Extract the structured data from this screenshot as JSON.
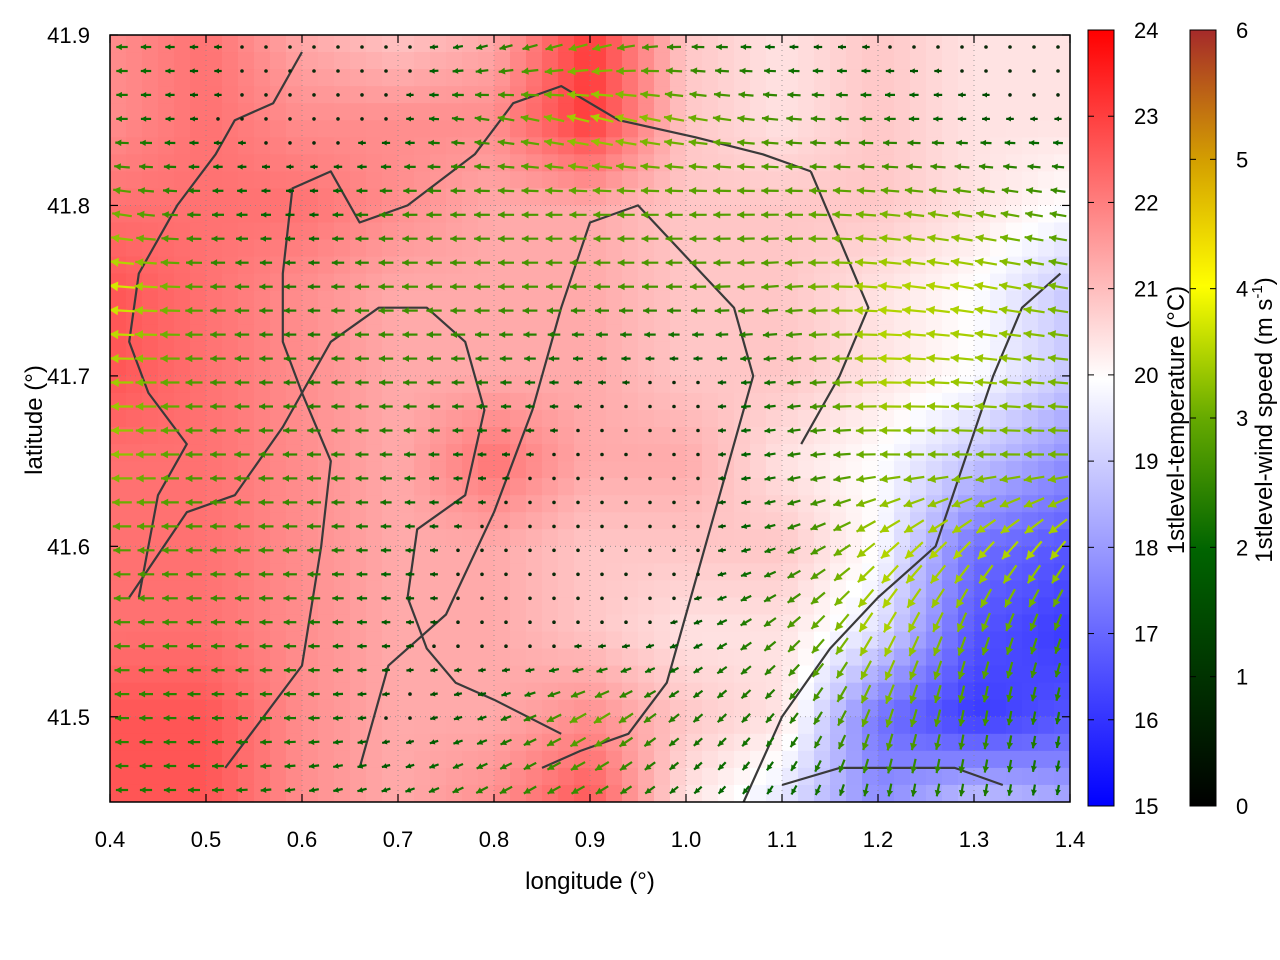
{
  "chart_data": {
    "type": "heatmap",
    "title": "",
    "xlabel": "longitude (°)",
    "ylabel": "latitude (°)",
    "xlim": [
      0.4,
      1.4
    ],
    "ylim": [
      41.45,
      41.9
    ],
    "x_ticks": [
      "0.4",
      "0.5",
      "0.6",
      "0.7",
      "0.8",
      "0.9",
      "1.0",
      "1.1",
      "1.2",
      "1.3",
      "1.4"
    ],
    "y_ticks": [
      "41.5",
      "41.6",
      "41.7",
      "41.8",
      "41.9"
    ],
    "grid": true,
    "temperature": {
      "label": "1stlevel-temperature (°C)",
      "range": [
        15,
        24
      ],
      "ticks": [
        "15",
        "16",
        "17",
        "18",
        "19",
        "20",
        "21",
        "22",
        "23",
        "24"
      ],
      "colormap": [
        "#0000ff",
        "#ffffff",
        "#ff0000"
      ],
      "grid_x": [
        0.4,
        0.5,
        0.6,
        0.7,
        0.8,
        0.9,
        1.0,
        1.1,
        1.2,
        1.3,
        1.4
      ],
      "grid_y": [
        41.9,
        41.85,
        41.8,
        41.75,
        41.7,
        41.65,
        41.6,
        41.55,
        41.5,
        41.45
      ],
      "values": [
        [
          21.5,
          22.0,
          21.0,
          20.5,
          21.0,
          23.0,
          20.5,
          20.0,
          20.5,
          20.0,
          20.0
        ],
        [
          21.5,
          22.0,
          21.5,
          21.5,
          21.5,
          23.0,
          20.5,
          20.0,
          20.5,
          20.0,
          20.0
        ],
        [
          22.0,
          22.0,
          22.0,
          21.5,
          21.0,
          21.0,
          20.5,
          20.5,
          20.5,
          20.0,
          19.5
        ],
        [
          22.5,
          22.0,
          21.5,
          21.0,
          21.0,
          21.0,
          20.5,
          20.5,
          20.0,
          19.5,
          18.5
        ],
        [
          22.5,
          22.0,
          21.5,
          21.0,
          21.0,
          21.0,
          20.5,
          20.5,
          20.0,
          19.5,
          18.5
        ],
        [
          22.0,
          22.0,
          21.5,
          21.0,
          22.0,
          21.0,
          21.0,
          20.0,
          19.5,
          18.5,
          17.5
        ],
        [
          22.0,
          22.0,
          21.5,
          21.0,
          21.0,
          20.5,
          20.5,
          20.5,
          19.5,
          17.0,
          16.5
        ],
        [
          22.0,
          22.0,
          21.5,
          21.0,
          21.0,
          20.5,
          20.0,
          20.0,
          19.0,
          16.5,
          16.0
        ],
        [
          22.5,
          22.5,
          21.5,
          21.0,
          21.0,
          21.5,
          20.5,
          20.0,
          17.0,
          16.0,
          16.5
        ],
        [
          22.5,
          22.5,
          21.5,
          21.0,
          21.5,
          22.5,
          20.0,
          19.0,
          17.5,
          18.5,
          18.0
        ]
      ]
    },
    "wind": {
      "label": "1stlevel-wind speed (m s-1)",
      "range": [
        0,
        6
      ],
      "ticks": [
        "0",
        "1",
        "2",
        "3",
        "4",
        "5",
        "6"
      ],
      "colormap": [
        "#000000",
        "#006400",
        "#66aa00",
        "#ffff00",
        "#d4a000",
        "#a52a2a"
      ],
      "grid_x": [
        0.4,
        0.5,
        0.6,
        0.7,
        0.8,
        0.9,
        1.0,
        1.1,
        1.2,
        1.3,
        1.4
      ],
      "grid_y": [
        41.9,
        41.85,
        41.8,
        41.75,
        41.7,
        41.65,
        41.6,
        41.55,
        41.5,
        41.45
      ],
      "speed": [
        [
          1.5,
          1.0,
          0.7,
          0.7,
          1.5,
          2.5,
          1.5,
          1.0,
          0.8,
          0.7,
          0.7
        ],
        [
          1.5,
          0.9,
          0.7,
          0.8,
          2.0,
          3.0,
          2.5,
          2.0,
          1.5,
          1.0,
          0.9
        ],
        [
          2.5,
          1.5,
          1.0,
          1.8,
          2.0,
          2.2,
          2.2,
          2.2,
          2.5,
          2.5,
          2.0
        ],
        [
          3.5,
          2.0,
          1.5,
          2.0,
          2.0,
          2.0,
          2.0,
          2.2,
          3.0,
          3.0,
          2.5
        ],
        [
          3.0,
          2.0,
          1.5,
          1.8,
          1.5,
          1.0,
          0.8,
          1.5,
          3.0,
          2.8,
          2.5
        ],
        [
          2.8,
          2.0,
          1.8,
          1.5,
          1.0,
          0.7,
          0.6,
          1.5,
          2.5,
          2.5,
          2.5
        ],
        [
          2.2,
          2.0,
          1.8,
          1.2,
          0.7,
          0.6,
          0.6,
          1.5,
          3.0,
          3.0,
          3.0
        ],
        [
          2.0,
          1.8,
          1.5,
          1.0,
          0.7,
          0.6,
          1.0,
          2.0,
          3.0,
          2.5,
          2.0
        ],
        [
          1.8,
          1.5,
          1.5,
          0.8,
          1.2,
          2.5,
          1.5,
          1.5,
          2.5,
          2.0,
          1.5
        ],
        [
          1.5,
          1.5,
          1.2,
          1.2,
          1.8,
          1.8,
          1.2,
          1.2,
          1.5,
          1.5,
          1.2
        ]
      ],
      "direction_deg": [
        [
          180,
          180,
          180,
          180,
          200,
          200,
          180,
          180,
          180,
          180,
          180
        ],
        [
          180,
          180,
          180,
          180,
          170,
          165,
          170,
          175,
          180,
          180,
          180
        ],
        [
          170,
          180,
          180,
          180,
          180,
          180,
          180,
          180,
          175,
          170,
          170
        ],
        [
          175,
          180,
          180,
          180,
          180,
          180,
          180,
          185,
          175,
          170,
          170
        ],
        [
          180,
          180,
          180,
          180,
          180,
          180,
          180,
          185,
          180,
          175,
          175
        ],
        [
          180,
          180,
          180,
          180,
          180,
          180,
          180,
          190,
          180,
          180,
          180
        ],
        [
          180,
          180,
          180,
          180,
          180,
          180,
          180,
          200,
          220,
          225,
          230
        ],
        [
          180,
          180,
          180,
          180,
          180,
          180,
          200,
          220,
          240,
          250,
          250
        ],
        [
          180,
          180,
          180,
          190,
          200,
          210,
          220,
          230,
          250,
          260,
          260
        ],
        [
          180,
          180,
          190,
          200,
          210,
          210,
          220,
          240,
          260,
          260,
          260
        ]
      ]
    },
    "boundaries": [
      [
        [
          0.43,
          41.57
        ],
        [
          0.45,
          41.63
        ],
        [
          0.48,
          41.66
        ],
        [
          0.44,
          41.69
        ],
        [
          0.42,
          41.72
        ],
        [
          0.43,
          41.76
        ],
        [
          0.47,
          41.8
        ],
        [
          0.51,
          41.83
        ],
        [
          0.53,
          41.85
        ],
        [
          0.57,
          41.86
        ],
        [
          0.6,
          41.89
        ]
      ],
      [
        [
          0.52,
          41.47
        ],
        [
          0.56,
          41.5
        ],
        [
          0.6,
          41.53
        ],
        [
          0.62,
          41.6
        ],
        [
          0.63,
          41.65
        ],
        [
          0.6,
          41.69
        ],
        [
          0.58,
          41.72
        ],
        [
          0.58,
          41.76
        ],
        [
          0.59,
          41.81
        ],
        [
          0.63,
          41.82
        ],
        [
          0.66,
          41.79
        ],
        [
          0.71,
          41.8
        ],
        [
          0.78,
          41.83
        ],
        [
          0.82,
          41.86
        ],
        [
          0.87,
          41.87
        ],
        [
          0.93,
          41.85
        ],
        [
          1.01,
          41.84
        ],
        [
          1.08,
          41.83
        ],
        [
          1.13,
          41.82
        ]
      ],
      [
        [
          0.42,
          41.57
        ],
        [
          0.48,
          41.62
        ],
        [
          0.53,
          41.63
        ],
        [
          0.58,
          41.67
        ],
        [
          0.63,
          41.72
        ],
        [
          0.68,
          41.74
        ],
        [
          0.73,
          41.74
        ],
        [
          0.77,
          41.72
        ],
        [
          0.79,
          41.68
        ],
        [
          0.77,
          41.63
        ],
        [
          0.72,
          41.61
        ],
        [
          0.71,
          41.57
        ],
        [
          0.73,
          41.54
        ],
        [
          0.76,
          41.52
        ],
        [
          0.8,
          41.51
        ],
        [
          0.87,
          41.49
        ]
      ],
      [
        [
          0.66,
          41.47
        ],
        [
          0.69,
          41.53
        ],
        [
          0.75,
          41.56
        ],
        [
          0.8,
          41.62
        ],
        [
          0.84,
          41.68
        ],
        [
          0.87,
          41.74
        ],
        [
          0.9,
          41.79
        ],
        [
          0.95,
          41.8
        ],
        [
          1.0,
          41.77
        ],
        [
          1.05,
          41.74
        ],
        [
          1.07,
          41.7
        ],
        [
          1.04,
          41.64
        ],
        [
          1.01,
          41.58
        ],
        [
          0.98,
          41.52
        ],
        [
          0.94,
          41.49
        ],
        [
          0.89,
          41.48
        ],
        [
          0.85,
          41.47
        ]
      ],
      [
        [
          1.06,
          41.45
        ],
        [
          1.1,
          41.5
        ],
        [
          1.15,
          41.54
        ],
        [
          1.2,
          41.57
        ],
        [
          1.26,
          41.6
        ],
        [
          1.29,
          41.65
        ],
        [
          1.32,
          41.7
        ],
        [
          1.35,
          41.74
        ],
        [
          1.39,
          41.76
        ]
      ],
      [
        [
          1.1,
          41.46
        ],
        [
          1.16,
          41.47
        ],
        [
          1.22,
          41.47
        ],
        [
          1.28,
          41.47
        ],
        [
          1.33,
          41.46
        ]
      ],
      [
        [
          1.13,
          41.82
        ],
        [
          1.16,
          41.78
        ],
        [
          1.19,
          41.74
        ],
        [
          1.16,
          41.7
        ],
        [
          1.12,
          41.66
        ]
      ]
    ]
  }
}
